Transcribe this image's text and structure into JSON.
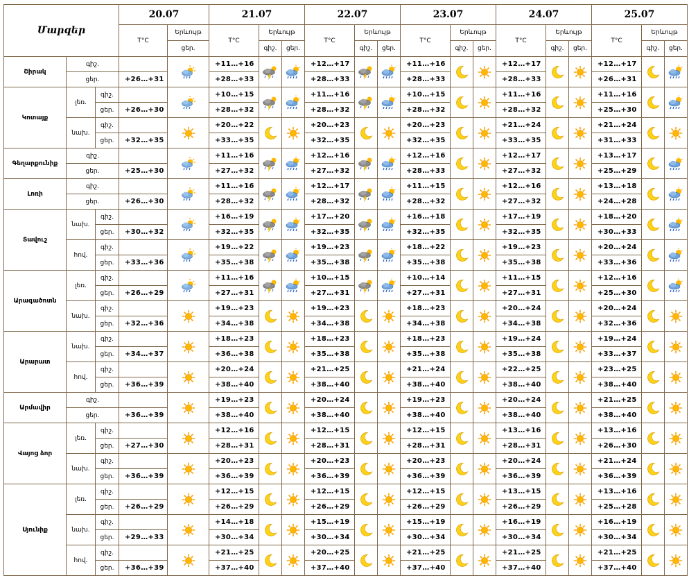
{
  "header": {
    "title": "Մարզեր",
    "temp_label": "T°C",
    "phen_label": "Երևույթ",
    "night": "գիշ.",
    "day": "ցեր.",
    "dates": [
      "20.07",
      "21.07",
      "22.07",
      "23.07",
      "24.07",
      "25.07"
    ]
  },
  "regions": [
    {
      "name": "Շիրակ",
      "subs": [
        {
          "name": "",
          "rows": [
            {
              "tod": "գիշ.",
              "temps": [
                "",
                "+11…+16",
                "+12…+17",
                "+11…+16",
                "+12…+17",
                "+12…+17"
              ],
              "icons": [
                "partly-rain-sun",
                "storm-cloud",
                "storm-cloud",
                "moon",
                "moon",
                "moon"
              ]
            },
            {
              "tod": "ցեր.",
              "temps": [
                "+26…+31",
                "+28…+33",
                "+28…+33",
                "+28…+33",
                "+28…+33",
                "+26…+31"
              ],
              "icons": [
                "",
                "rain-cloud-sun",
                "rain-cloud-sun",
                "sun",
                "sun",
                "rain-cloud-sun"
              ]
            }
          ]
        }
      ]
    },
    {
      "name": "Կոտայք",
      "subs": [
        {
          "name": "լեռ.",
          "rows": [
            {
              "tod": "գիշ.",
              "temps": [
                "",
                "+10…+15",
                "+11…+16",
                "+10…+15",
                "+11…+16",
                "+11…+16"
              ],
              "icons": [
                "partly-rain-sun",
                "storm-cloud",
                "storm-cloud",
                "moon",
                "moon",
                "moon"
              ]
            },
            {
              "tod": "ցեր.",
              "temps": [
                "+26…+30",
                "+28…+32",
                "+28…+32",
                "+28…+32",
                "+28…+32",
                "+25…+30"
              ],
              "icons": [
                "",
                "rain-cloud-sun",
                "rain-cloud-sun",
                "sun",
                "sun",
                "rain-cloud-sun"
              ]
            }
          ]
        },
        {
          "name": "նախ.",
          "rows": [
            {
              "tod": "գիշ.",
              "temps": [
                "",
                "+20…+22",
                "+20…+23",
                "+20…+23",
                "+21…+24",
                "+21…+24"
              ],
              "icons": [
                "sun",
                "moon",
                "moon",
                "moon",
                "moon",
                "moon"
              ]
            },
            {
              "tod": "ցեր.",
              "temps": [
                "+32…+35",
                "+33…+35",
                "+32…+35",
                "+32…+35",
                "+33…+35",
                "+31…+33"
              ],
              "icons": [
                "",
                "sun",
                "sun",
                "sun",
                "sun",
                "sun"
              ]
            }
          ]
        }
      ]
    },
    {
      "name": "Գեղարքունիք",
      "subs": [
        {
          "name": "",
          "rows": [
            {
              "tod": "գիշ.",
              "temps": [
                "",
                "+11…+16",
                "+12…+16",
                "+12…+16",
                "+12…+17",
                "+13…+17"
              ],
              "icons": [
                "partly-rain-sun",
                "storm-cloud",
                "storm-cloud",
                "moon",
                "moon",
                "moon"
              ]
            },
            {
              "tod": "ցեր.",
              "temps": [
                "+25…+30",
                "+27…+32",
                "+27…+32",
                "+28…+33",
                "+27…+32",
                "+25…+29"
              ],
              "icons": [
                "",
                "rain-cloud-sun",
                "rain-cloud-sun",
                "sun",
                "sun",
                "rain-cloud-sun"
              ]
            }
          ]
        }
      ]
    },
    {
      "name": "Լոռի",
      "subs": [
        {
          "name": "",
          "rows": [
            {
              "tod": "գիշ.",
              "temps": [
                "",
                "+11…+16",
                "+12…+17",
                "+11…+15",
                "+12…+16",
                "+13…+18"
              ],
              "icons": [
                "partly-rain-sun",
                "storm-cloud",
                "storm-cloud",
                "moon",
                "moon",
                "moon"
              ]
            },
            {
              "tod": "ցեր.",
              "temps": [
                "+26…+30",
                "+28…+32",
                "+28…+32",
                "+28…+32",
                "+27…+32",
                "+24…+28"
              ],
              "icons": [
                "",
                "rain-cloud-sun",
                "rain-cloud-sun",
                "sun",
                "sun",
                "rain-cloud-sun"
              ]
            }
          ]
        }
      ]
    },
    {
      "name": "Տավուշ",
      "subs": [
        {
          "name": "նախ.",
          "rows": [
            {
              "tod": "գիշ.",
              "temps": [
                "",
                "+16…+19",
                "+17…+20",
                "+16…+18",
                "+17…+19",
                "+18…+20"
              ],
              "icons": [
                "partly-rain-sun",
                "storm-cloud",
                "storm-cloud",
                "moon",
                "moon",
                "moon"
              ]
            },
            {
              "tod": "ցեր.",
              "temps": [
                "+30…+32",
                "+32…+35",
                "+32…+35",
                "+32…+35",
                "+32…+35",
                "+30…+33"
              ],
              "icons": [
                "",
                "rain-cloud-sun",
                "rain-cloud-sun",
                "sun",
                "sun",
                "rain-cloud-sun"
              ]
            }
          ]
        },
        {
          "name": "հով.",
          "rows": [
            {
              "tod": "գիշ.",
              "temps": [
                "",
                "+19…+22",
                "+19…+23",
                "+18…+22",
                "+19…+23",
                "+20…+24"
              ],
              "icons": [
                "partly-rain-sun",
                "storm-cloud",
                "storm-cloud",
                "moon",
                "moon",
                "moon"
              ]
            },
            {
              "tod": "ցեր.",
              "temps": [
                "+33…+36",
                "+35…+38",
                "+35…+38",
                "+35…+38",
                "+35…+38",
                "+33…+36"
              ],
              "icons": [
                "",
                "rain-cloud-sun",
                "rain-cloud-sun",
                "sun",
                "sun",
                "rain-cloud-sun"
              ]
            }
          ]
        }
      ]
    },
    {
      "name": "Արագածոտն",
      "subs": [
        {
          "name": "լեռ.",
          "rows": [
            {
              "tod": "գիշ.",
              "temps": [
                "",
                "+11…+16",
                "+10…+15",
                "+10…+14",
                "+11…+15",
                "+12…+16"
              ],
              "icons": [
                "partly-rain-sun",
                "storm-cloud",
                "storm-cloud",
                "moon",
                "moon",
                "moon"
              ]
            },
            {
              "tod": "ցեր.",
              "temps": [
                "+26…+29",
                "+27…+31",
                "+27…+31",
                "+27…+31",
                "+27…+31",
                "+25…+30"
              ],
              "icons": [
                "",
                "rain-cloud-sun",
                "rain-cloud-sun",
                "sun",
                "sun",
                "rain-cloud-sun"
              ]
            }
          ]
        },
        {
          "name": "նախ.",
          "rows": [
            {
              "tod": "գիշ.",
              "temps": [
                "",
                "+19…+23",
                "+19…+23",
                "+18…+23",
                "+20…+24",
                "+20…+24"
              ],
              "icons": [
                "sun",
                "moon",
                "moon",
                "moon",
                "moon",
                "moon"
              ]
            },
            {
              "tod": "ցեր.",
              "temps": [
                "+32…+36",
                "+34…+38",
                "+34…+38",
                "+34…+38",
                "+34…+38",
                "+32…+36"
              ],
              "icons": [
                "",
                "sun",
                "sun",
                "sun",
                "sun",
                "sun"
              ]
            }
          ]
        }
      ]
    },
    {
      "name": "Արարատ",
      "subs": [
        {
          "name": "նախ.",
          "rows": [
            {
              "tod": "գիշ.",
              "temps": [
                "",
                "+18…+23",
                "+18…+23",
                "+18…+23",
                "+19…+24",
                "+19…+24"
              ],
              "icons": [
                "sun",
                "moon",
                "moon",
                "moon",
                "moon",
                "moon"
              ]
            },
            {
              "tod": "ցեր.",
              "temps": [
                "+34…+37",
                "+36…+38",
                "+35…+38",
                "+35…+38",
                "+35…+38",
                "+33…+37"
              ],
              "icons": [
                "",
                "sun",
                "sun",
                "sun",
                "sun",
                "sun"
              ]
            }
          ]
        },
        {
          "name": "հով.",
          "rows": [
            {
              "tod": "գիշ.",
              "temps": [
                "",
                "+20…+24",
                "+21…+25",
                "+21…+24",
                "+22…+25",
                "+23…+25"
              ],
              "icons": [
                "sun",
                "moon",
                "moon",
                "moon",
                "moon",
                "moon"
              ]
            },
            {
              "tod": "ցեր.",
              "temps": [
                "+36…+39",
                "+38…+40",
                "+38…+40",
                "+38…+40",
                "+38…+40",
                "+38…+40"
              ],
              "icons": [
                "",
                "sun",
                "sun",
                "sun",
                "sun",
                "sun"
              ]
            }
          ]
        }
      ]
    },
    {
      "name": "Արմավիր",
      "subs": [
        {
          "name": "",
          "rows": [
            {
              "tod": "գիշ.",
              "temps": [
                "",
                "+19…+23",
                "+20…+24",
                "+19…+23",
                "+20…+24",
                "+21…+25"
              ],
              "icons": [
                "sun",
                "moon",
                "moon",
                "moon",
                "moon",
                "moon"
              ]
            },
            {
              "tod": "ցեր.",
              "temps": [
                "+36…+39",
                "+38…+40",
                "+38…+40",
                "+38…+40",
                "+38…+40",
                "+38…+40"
              ],
              "icons": [
                "",
                "sun",
                "sun",
                "sun",
                "sun",
                "sun"
              ]
            }
          ]
        }
      ]
    },
    {
      "name": "Վայոց ձոր",
      "subs": [
        {
          "name": "լեռ.",
          "rows": [
            {
              "tod": "գիշ.",
              "temps": [
                "",
                "+12…+16",
                "+12…+15",
                "+12…+15",
                "+13…+16",
                "+13…+16"
              ],
              "icons": [
                "sun",
                "moon",
                "moon",
                "moon",
                "moon",
                "moon"
              ]
            },
            {
              "tod": "ցեր.",
              "temps": [
                "+27…+30",
                "+28…+31",
                "+28…+31",
                "+28…+31",
                "+28…+31",
                "+26…+30"
              ],
              "icons": [
                "",
                "sun",
                "sun",
                "sun",
                "sun",
                "sun"
              ]
            }
          ]
        },
        {
          "name": "նախ.",
          "rows": [
            {
              "tod": "գիշ.",
              "temps": [
                "",
                "+20…+23",
                "+20…+23",
                "+20…+23",
                "+20…+24",
                "+21…+24"
              ],
              "icons": [
                "sun",
                "moon",
                "moon",
                "moon",
                "moon",
                "moon"
              ]
            },
            {
              "tod": "ցեր.",
              "temps": [
                "+36…+39",
                "+36…+39",
                "+36…+39",
                "+36…+39",
                "+36…+39",
                "+36…+39"
              ],
              "icons": [
                "",
                "sun",
                "sun",
                "sun",
                "sun",
                "sun"
              ]
            }
          ]
        }
      ]
    },
    {
      "name": "Սյունիք",
      "subs": [
        {
          "name": "լեռ.",
          "rows": [
            {
              "tod": "գիշ.",
              "temps": [
                "",
                "+12…+15",
                "+12…+15",
                "+12…+15",
                "+13…+15",
                "+13…+16"
              ],
              "icons": [
                "sun",
                "moon",
                "moon",
                "moon",
                "moon",
                "moon"
              ]
            },
            {
              "tod": "ցեր.",
              "temps": [
                "+26…+29",
                "+26…+29",
                "+26…+29",
                "+26…+29",
                "+26…+29",
                "+25…+28"
              ],
              "icons": [
                "",
                "sun",
                "sun",
                "sun",
                "sun",
                "sun"
              ]
            }
          ]
        },
        {
          "name": "նախ.",
          "rows": [
            {
              "tod": "գիշ.",
              "temps": [
                "",
                "+14…+18",
                "+15…+19",
                "+15…+19",
                "+16…+19",
                "+16…+19"
              ],
              "icons": [
                "sun",
                "moon",
                "moon",
                "moon",
                "moon",
                "moon"
              ]
            },
            {
              "tod": "ցեր.",
              "temps": [
                "+29…+33",
                "+30…+34",
                "+30…+34",
                "+30…+34",
                "+30…+34",
                "+30…+34"
              ],
              "icons": [
                "",
                "sun",
                "sun",
                "sun",
                "sun",
                "sun"
              ]
            }
          ]
        },
        {
          "name": "հով.",
          "rows": [
            {
              "tod": "գիշ.",
              "temps": [
                "",
                "+21…+25",
                "+20…+25",
                "+21…+25",
                "+21…+25",
                "+21…+25"
              ],
              "icons": [
                "sun",
                "moon",
                "moon",
                "moon",
                "moon",
                "moon"
              ]
            },
            {
              "tod": "ցեր.",
              "temps": [
                "+36…+39",
                "+37…+40",
                "+37…+40",
                "+37…+40",
                "+37…+40",
                "+37…+40"
              ],
              "icons": [
                "",
                "sun",
                "sun",
                "sun",
                "sun",
                "sun"
              ]
            }
          ]
        }
      ]
    }
  ]
}
